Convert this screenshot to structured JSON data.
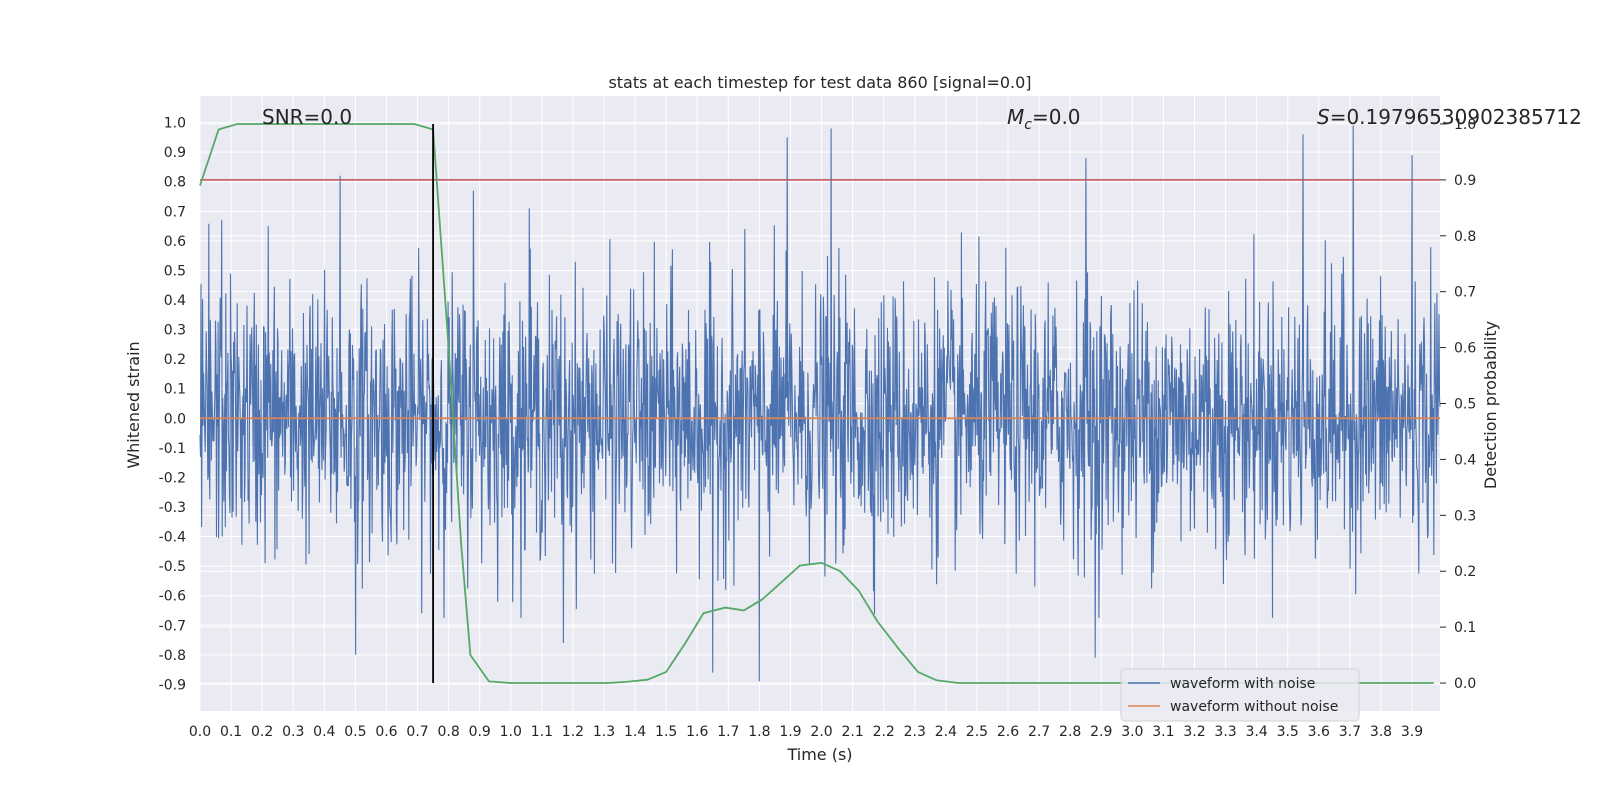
{
  "chart_data": {
    "type": "line",
    "title": "stats at each timestep for test data 860 [signal=0.0]",
    "xlabel": "Time (s)",
    "ylabel": "Whitened strain",
    "y2label": "Detection probability",
    "xlim": [
      0.0,
      3.99
    ],
    "ylim": [
      -0.99,
      1.09
    ],
    "y2lim": [
      -0.05,
      1.05
    ],
    "x_ticks": [
      "0.0",
      "0.1",
      "0.2",
      "0.3",
      "0.4",
      "0.5",
      "0.6",
      "0.7",
      "0.8",
      "0.9",
      "1.0",
      "1.1",
      "1.2",
      "1.3",
      "1.4",
      "1.5",
      "1.6",
      "1.7",
      "1.8",
      "1.9",
      "2.0",
      "2.1",
      "2.2",
      "2.3",
      "2.4",
      "2.5",
      "2.6",
      "2.7",
      "2.8",
      "2.9",
      "3.0",
      "3.1",
      "3.2",
      "3.3",
      "3.4",
      "3.5",
      "3.6",
      "3.7",
      "3.8",
      "3.9"
    ],
    "y_ticks": [
      "1.0",
      "0.9",
      "0.8",
      "0.7",
      "0.6",
      "0.5",
      "0.4",
      "0.3",
      "0.2",
      "0.1",
      "0.0",
      "-0.1",
      "-0.2",
      "-0.3",
      "-0.4",
      "-0.5",
      "-0.6",
      "-0.7",
      "-0.8",
      "-0.9"
    ],
    "y2_ticks": [
      "1.0",
      "0.9",
      "0.8",
      "0.7",
      "0.6",
      "0.5",
      "0.4",
      "0.3",
      "0.2",
      "0.1",
      "0.0"
    ],
    "grid": true,
    "legend_position": "lower-right",
    "annotations": {
      "snr": "SNR=0.0",
      "mc": "M_c=0.0",
      "s": "S=0.19796530902385712"
    },
    "series": [
      {
        "name": "waveform with noise",
        "axis": "left",
        "color": "#4c72b0",
        "noise_amplitude_estimate": 0.9,
        "peaks": [
          {
            "x": 0.07,
            "y": 0.67
          },
          {
            "x": 0.22,
            "y": 0.65
          },
          {
            "x": 0.45,
            "y": 0.82
          },
          {
            "x": 0.5,
            "y": -0.8
          },
          {
            "x": 0.88,
            "y": 0.77
          },
          {
            "x": 1.06,
            "y": 0.71
          },
          {
            "x": 1.17,
            "y": -0.76
          },
          {
            "x": 1.65,
            "y": -0.86
          },
          {
            "x": 1.8,
            "y": -0.89
          },
          {
            "x": 1.89,
            "y": 0.95
          },
          {
            "x": 2.03,
            "y": 0.98
          },
          {
            "x": 2.85,
            "y": 0.88
          },
          {
            "x": 2.88,
            "y": -0.81
          },
          {
            "x": 3.55,
            "y": 0.96
          },
          {
            "x": 3.71,
            "y": 0.99
          },
          {
            "x": 3.9,
            "y": 0.89
          }
        ]
      },
      {
        "name": "waveform without noise",
        "axis": "left",
        "color": "#dd8452",
        "x": [
          0.0,
          3.99
        ],
        "y": [
          0.0,
          0.0
        ]
      },
      {
        "name": "",
        "axis": "right",
        "color": "#55a868",
        "x": [
          0.0,
          0.06,
          0.12,
          0.19,
          0.25,
          0.31,
          0.38,
          0.44,
          0.5,
          0.56,
          0.62,
          0.69,
          0.75,
          0.8,
          0.84,
          0.87,
          0.93,
          1.0,
          1.06,
          1.12,
          1.19,
          1.25,
          1.31,
          1.37,
          1.44,
          1.5,
          1.56,
          1.62,
          1.69,
          1.75,
          1.81,
          1.87,
          1.93,
          2.0,
          2.06,
          2.12,
          2.18,
          2.25,
          2.31,
          2.37,
          2.44,
          2.5,
          3.0,
          3.5,
          3.97
        ],
        "y": [
          0.89,
          0.99,
          1.0,
          1.0,
          1.0,
          1.0,
          1.0,
          1.0,
          1.0,
          1.0,
          1.0,
          1.0,
          0.99,
          0.6,
          0.25,
          0.05,
          0.003,
          0.0,
          0.0,
          0.0,
          0.0,
          0.0,
          0.0,
          0.002,
          0.006,
          0.02,
          0.07,
          0.125,
          0.135,
          0.13,
          0.15,
          0.18,
          0.21,
          0.215,
          0.2,
          0.165,
          0.11,
          0.06,
          0.02,
          0.005,
          0.0,
          0.0,
          0.0,
          0.0,
          0.0
        ]
      }
    ],
    "threshold": {
      "axis": "right",
      "value": 0.9,
      "color": "#c44e52"
    },
    "marker_line": {
      "x": 0.75,
      "y_from": 1.0,
      "y_to": 0.0,
      "color": "#000000"
    }
  }
}
